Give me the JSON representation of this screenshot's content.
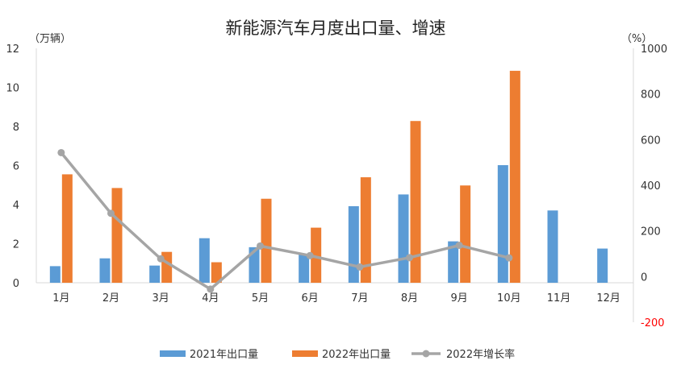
{
  "chart_data": {
    "type": "bar",
    "title": "新能源汽车月度出口量、增速",
    "left_axis_label": "（万辆）",
    "right_axis_label": "（%）",
    "categories": [
      "1月",
      "2月",
      "3月",
      "4月",
      "5月",
      "6月",
      "7月",
      "8月",
      "9月",
      "10月",
      "11月",
      "12月"
    ],
    "y_left": {
      "min": 0,
      "max": 12,
      "ticks": [
        0,
        2,
        4,
        6,
        8,
        10,
        12
      ]
    },
    "y_right": {
      "min": -200,
      "max": 1000,
      "ticks": [
        -200,
        0,
        200,
        400,
        600,
        800,
        1000
      ],
      "negative_color": "#ff0000"
    },
    "series": [
      {
        "name": "2021年出口量",
        "type": "bar",
        "axis": "left",
        "color": "#5b9bd5",
        "values": [
          0.85,
          1.25,
          0.88,
          2.28,
          1.82,
          1.45,
          3.92,
          4.52,
          2.12,
          6.02,
          3.7,
          1.75
        ]
      },
      {
        "name": "2022年出口量",
        "type": "bar",
        "axis": "left",
        "color": "#ed7d31",
        "values": [
          5.55,
          4.85,
          1.58,
          1.05,
          4.3,
          2.82,
          5.4,
          8.28,
          4.98,
          10.85,
          null,
          null
        ]
      },
      {
        "name": "2022年增长率",
        "type": "line",
        "axis": "right",
        "color": "#a5a5a5",
        "values": [
          543,
          277,
          78,
          -55,
          134,
          92,
          42,
          83,
          137,
          82,
          null,
          null
        ]
      }
    ],
    "legend": "bottom",
    "grid": false
  }
}
